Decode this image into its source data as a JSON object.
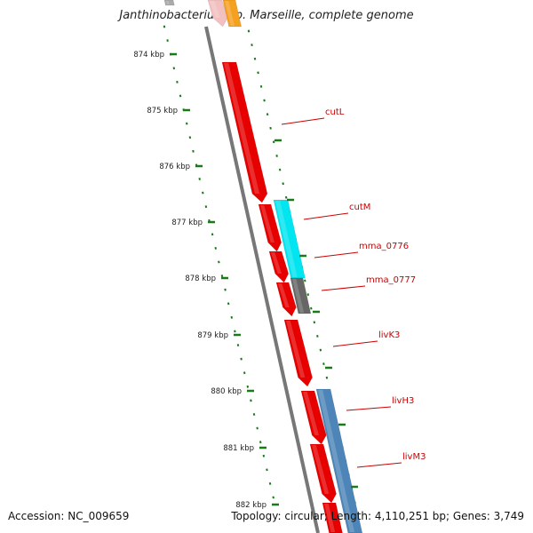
{
  "title": "Janthinobacterium sp. Marseille, complete genome",
  "footer": {
    "accession": "Accession: NC_009659",
    "topology_info": "Topology: circular; Length: 4,110,251 bp; Genes: 3,749"
  },
  "ruler": {
    "ticks": [
      {
        "label": "874 kbp",
        "kbp": 874
      },
      {
        "label": "875 kbp",
        "kbp": 875
      },
      {
        "label": "876 kbp",
        "kbp": 876
      },
      {
        "label": "877 kbp",
        "kbp": 877
      },
      {
        "label": "878 kbp",
        "kbp": 878
      },
      {
        "label": "879 kbp",
        "kbp": 879
      },
      {
        "label": "880 kbp",
        "kbp": 880
      },
      {
        "label": "881 kbp",
        "kbp": 881
      },
      {
        "label": "882 kbp",
        "kbp": 882
      }
    ],
    "tick_color": "#1a7a1a"
  },
  "genes": [
    {
      "label": "cutL",
      "color": "#e60000"
    },
    {
      "label": "cutM",
      "color": "#e60000"
    },
    {
      "label": "mma_0776",
      "color": "#e60000"
    },
    {
      "label": "mma_0777",
      "color": "#e60000"
    },
    {
      "label": "livK3",
      "color": "#e60000"
    },
    {
      "label": "livH3",
      "color": "#e60000"
    },
    {
      "label": "livM3",
      "color": "#e60000"
    }
  ],
  "colors": {
    "forward_gene": "#e60000",
    "cyan_feature": "#00e5ef",
    "gray_feature": "#666666",
    "blue_feature": "#4d85b8",
    "orange_feature": "#f5a020",
    "backbone": "#777777",
    "label": "#cc0000"
  }
}
